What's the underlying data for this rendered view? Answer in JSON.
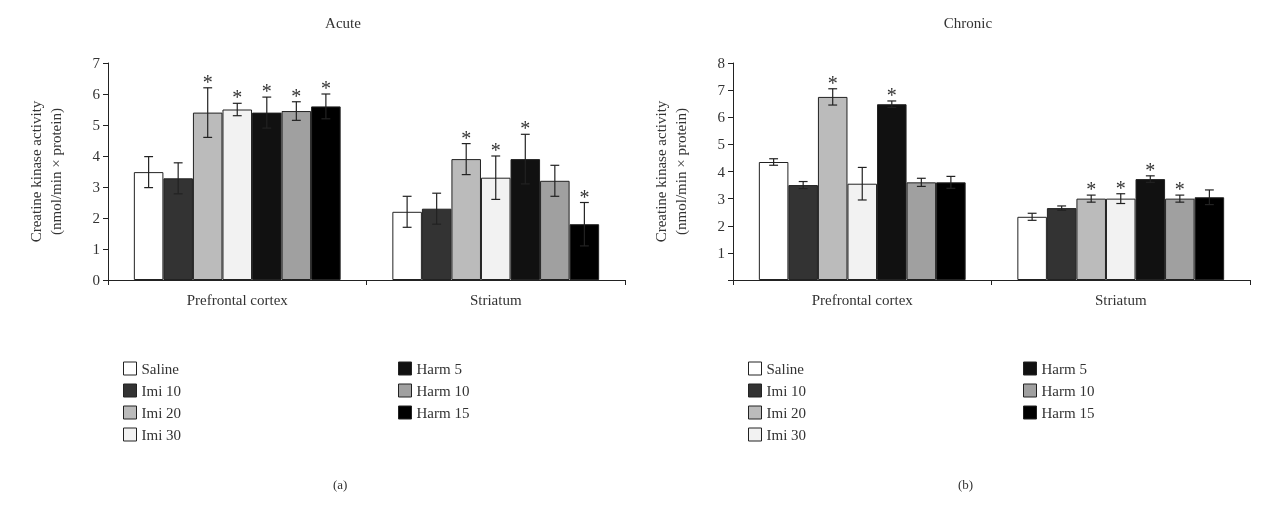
{
  "chart_data": [
    {
      "type": "bar",
      "title": "Acute",
      "ylabel": "Creatine kinase activity\n(nmol/min × protein)",
      "categories": [
        "Prefrontal cortex",
        "Striatum"
      ],
      "ylim": [
        0,
        7
      ],
      "yticks": [
        0,
        1,
        2,
        3,
        4,
        5,
        6,
        7
      ],
      "grid": false,
      "legend": "bottom",
      "annotations": [
        "(a)"
      ],
      "series": [
        {
          "name": "Saline",
          "color": "#ffffff",
          "values": [
            3.48,
            2.2
          ],
          "errors": [
            0.5,
            0.5
          ],
          "value_labels": [
            null,
            null
          ]
        },
        {
          "name": "Imi 10",
          "color": "#333333",
          "values": [
            3.28,
            2.3
          ],
          "errors": [
            0.5,
            0.5
          ],
          "value_labels": [
            null,
            null
          ]
        },
        {
          "name": "Imi 20",
          "color": "#bbbbbb",
          "values": [
            5.4,
            3.9
          ],
          "errors": [
            0.8,
            0.5
          ],
          "value_labels": [
            "*",
            "*"
          ]
        },
        {
          "name": "Imi 30",
          "color": "#f2f2f2",
          "values": [
            5.5,
            3.3
          ],
          "errors": [
            0.2,
            0.7
          ],
          "value_labels": [
            "*",
            "*"
          ]
        },
        {
          "name": "Harm 5",
          "color": "#111111",
          "values": [
            5.4,
            3.9
          ],
          "errors": [
            0.5,
            0.8
          ],
          "value_labels": [
            "*",
            "*"
          ]
        },
        {
          "name": "Harm 10",
          "color": "#a0a0a0",
          "values": [
            5.45,
            3.2
          ],
          "errors": [
            0.3,
            0.5
          ],
          "value_labels": [
            "*",
            null
          ]
        },
        {
          "name": "Harm 15",
          "color": "#000000",
          "values": [
            5.6,
            1.8
          ],
          "errors": [
            0.4,
            0.7
          ],
          "value_labels": [
            "*",
            "*"
          ]
        }
      ]
    },
    {
      "type": "bar",
      "title": "Chronic",
      "ylabel": "Creatine kinase activity\n(nmol/min × protein)",
      "categories": [
        "Prefrontal cortex",
        "Striatum"
      ],
      "ylim": [
        0,
        8
      ],
      "yticks": [
        {
          "value": 0,
          "label": null
        },
        1,
        2,
        3,
        4,
        5,
        6,
        7,
        8
      ],
      "grid": false,
      "legend": "bottom",
      "annotations": [
        "(b)"
      ],
      "series": [
        {
          "name": "Saline",
          "color": "#ffffff",
          "values": [
            4.35,
            2.33
          ],
          "errors": [
            0.12,
            0.13
          ],
          "value_labels": [
            null,
            null
          ]
        },
        {
          "name": "Imi 10",
          "color": "#333333",
          "values": [
            3.5,
            2.65
          ],
          "errors": [
            0.13,
            0.08
          ],
          "value_labels": [
            null,
            null
          ]
        },
        {
          "name": "Imi 20",
          "color": "#bbbbbb",
          "values": [
            6.75,
            3.0
          ],
          "errors": [
            0.3,
            0.13
          ],
          "value_labels": [
            "*",
            "*"
          ]
        },
        {
          "name": "Imi 30",
          "color": "#f2f2f2",
          "values": [
            3.55,
            3.0
          ],
          "errors": [
            0.6,
            0.18
          ],
          "value_labels": [
            null,
            "*"
          ]
        },
        {
          "name": "Harm 5",
          "color": "#111111",
          "values": [
            6.48,
            3.72
          ],
          "errors": [
            0.12,
            0.12
          ],
          "value_labels": [
            "*",
            "*"
          ]
        },
        {
          "name": "Harm 10",
          "color": "#a0a0a0",
          "values": [
            3.6,
            3.0
          ],
          "errors": [
            0.15,
            0.13
          ],
          "value_labels": [
            null,
            "*"
          ]
        },
        {
          "name": "Harm 15",
          "color": "#000000",
          "values": [
            3.6,
            3.05
          ],
          "errors": [
            0.22,
            0.27
          ],
          "value_labels": [
            null,
            null
          ]
        }
      ]
    }
  ]
}
